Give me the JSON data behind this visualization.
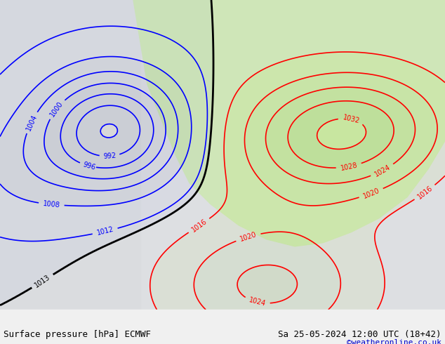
{
  "title_left": "Surface pressure [hPa] ECMWF",
  "title_right": "Sa 25-05-2024 12:00 UTC (18+42)",
  "credit": "©weatheronline.co.uk",
  "bg_color": "#e8e8e8",
  "land_color": "#c8e6a0",
  "sea_color": "#dcdcdc",
  "fig_width": 6.34,
  "fig_height": 4.9,
  "dpi": 100,
  "bottom_bar_color": "#f0f0f0",
  "text_color": "#000000",
  "credit_color": "#0000cc",
  "font_size_label": 9,
  "font_size_credit": 8,
  "contour_blue": "#0000ff",
  "contour_red": "#ff0000",
  "contour_black": "#000000",
  "contour_thick_black": "#000000"
}
